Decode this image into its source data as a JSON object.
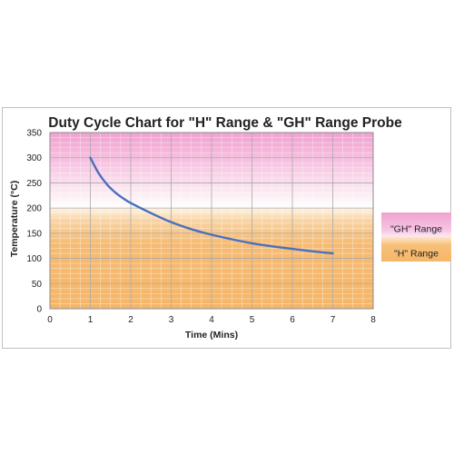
{
  "chart_data": {
    "type": "line",
    "title": "Duty Cycle Chart for \"H\" Range & \"GH\" Range Probe",
    "xlabel": "Time (Mins)",
    "ylabel": "Temperature (°C)",
    "xlim": [
      0,
      8
    ],
    "ylim": [
      0,
      350
    ],
    "x_ticks": [
      0,
      1,
      2,
      3,
      4,
      5,
      6,
      7,
      8
    ],
    "y_ticks": [
      0,
      50,
      100,
      150,
      200,
      250,
      300,
      350
    ],
    "grid": true,
    "series": [
      {
        "color": "#4a6fc0",
        "points": [
          {
            "x": 1.0,
            "y": 300
          },
          {
            "x": 1.2,
            "y": 270
          },
          {
            "x": 1.4,
            "y": 248
          },
          {
            "x": 1.6,
            "y": 232
          },
          {
            "x": 1.8,
            "y": 220
          },
          {
            "x": 2.0,
            "y": 210
          },
          {
            "x": 2.5,
            "y": 190
          },
          {
            "x": 3.0,
            "y": 172
          },
          {
            "x": 3.5,
            "y": 158
          },
          {
            "x": 4.0,
            "y": 147
          },
          {
            "x": 4.5,
            "y": 138
          },
          {
            "x": 5.0,
            "y": 130
          },
          {
            "x": 5.5,
            "y": 124
          },
          {
            "x": 6.0,
            "y": 119
          },
          {
            "x": 6.5,
            "y": 114
          },
          {
            "x": 7.0,
            "y": 110
          }
        ]
      }
    ],
    "bands": [
      {
        "label": "\"GH\" Range",
        "from": 200,
        "to": 350,
        "color": "#f2a6d2"
      },
      {
        "label": "\"H\" Range",
        "from": 0,
        "to": 200,
        "color": "#f6b86a"
      }
    ],
    "legend_position": "right",
    "legend": [
      {
        "label": "\"GH\" Range",
        "color": "#f2a6d2"
      },
      {
        "label": "\"H\" Range",
        "color": "#f6b86a"
      }
    ]
  }
}
